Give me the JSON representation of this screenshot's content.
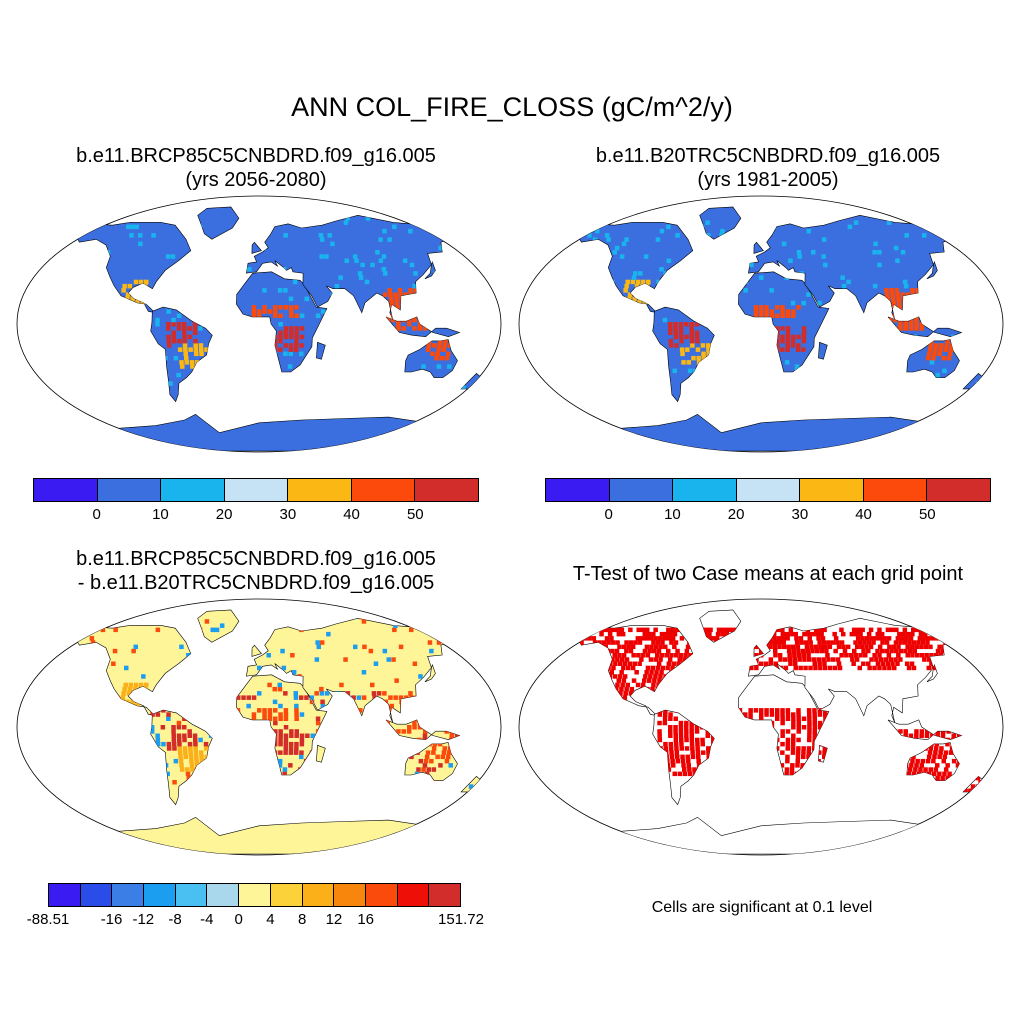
{
  "main_title": "ANN COL_FIRE_CLOSS (gC/m^2/y)",
  "panels": [
    {
      "id": "test",
      "title_line1": "b.e11.BRCP85C5CNBDRD.f09_g16.005",
      "title_line2": "(yrs 2056-2080)",
      "colorbar": {
        "colors": [
          "#3a1cf2",
          "#3b6fdf",
          "#19b4ee",
          "#c5e3f4",
          "#fbb814",
          "#fb4a0c",
          "#d22d2a"
        ],
        "labels": [
          "0",
          "10",
          "20",
          "30",
          "40",
          "50"
        ]
      },
      "map_colors": {
        "land": "#3b6fdf",
        "ocean": "#ffffff",
        "hot": "#d22d2a",
        "warm": "#fb4a0c",
        "mild": "#fbb814",
        "cool": "#19b4ee"
      }
    },
    {
      "id": "control",
      "title_line1": "b.e11.B20TRC5CNBDRD.f09_g16.005",
      "title_line2": "(yrs 1981-2005)",
      "colorbar": {
        "colors": [
          "#3a1cf2",
          "#3b6fdf",
          "#19b4ee",
          "#c5e3f4",
          "#fbb814",
          "#fb4a0c",
          "#d22d2a"
        ],
        "labels": [
          "0",
          "10",
          "20",
          "30",
          "40",
          "50"
        ]
      },
      "map_colors": {
        "land": "#3b6fdf",
        "ocean": "#ffffff",
        "hot": "#d22d2a",
        "warm": "#fb4a0c",
        "mild": "#fbb814",
        "cool": "#19b4ee"
      }
    },
    {
      "id": "difference",
      "title_line1": "b.e11.BRCP85C5CNBDRD.f09_g16.005",
      "title_line2": "- b.e11.B20TRC5CNBDRD.f09_g16.005",
      "colorbar": {
        "colors": [
          "#3a1cf2",
          "#2a4ce8",
          "#3b7ee6",
          "#1c9ef0",
          "#4ac0f2",
          "#a9d7ec",
          "#fdf598",
          "#fcd23a",
          "#fbb01a",
          "#f8860c",
          "#fa4a0c",
          "#ee0f06",
          "#d22d2a"
        ],
        "labels": [
          "-88.51",
          "-16",
          "-12",
          "-8",
          "-4",
          "0",
          "4",
          "8",
          "12",
          "16",
          "151.72"
        ]
      },
      "map_colors": {
        "land": "#fdf598",
        "ocean": "#ffffff",
        "hot": "#d22d2a",
        "warm": "#fa4a0c",
        "mild": "#fbb01a",
        "cool": "#1c9ef0"
      }
    },
    {
      "id": "ttest",
      "title_line1": "T-Test of two Case means at each grid point",
      "title_line2": "",
      "note": "Cells are significant at 0.1 level",
      "map_colors": {
        "land": "#ffffff",
        "ocean": "#ffffff",
        "significant": "#ee0000"
      }
    }
  ]
}
